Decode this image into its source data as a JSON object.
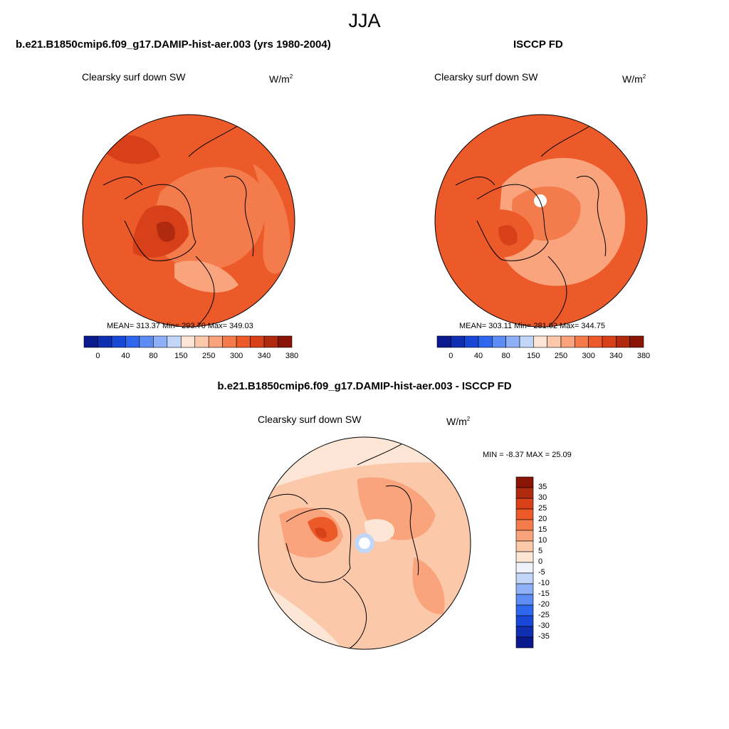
{
  "season": "JJA",
  "panels": [
    {
      "title": "b.e21.B1850cmip6.f09_g17.DAMIP-hist-aer.003 (yrs 1980-2004)",
      "variable": "Clearsky surf down SW",
      "units_base": "W/m",
      "units_exp": "2",
      "stats": "MEAN= 313.37  Min= 293.70  Max= 349.03"
    },
    {
      "title": "ISCCP FD",
      "variable": "Clearsky surf down SW",
      "units_base": "W/m",
      "units_exp": "2",
      "stats": "MEAN= 303.11  Min= 281.02  Max= 344.75"
    },
    {
      "title": "b.e21.B1850cmip6.f09_g17.DAMIP-hist-aer.003 - ISCCP FD",
      "variable": "Clearsky surf down SW",
      "units_base": "W/m",
      "units_exp": "2",
      "stats": "MIN =  -8.37 MAX =  25.09"
    }
  ],
  "colorbar_top": {
    "colors": [
      "#0a1a8c",
      "#0f2fb0",
      "#1948d8",
      "#2e66ee",
      "#5c8cf4",
      "#8fb0f6",
      "#c2d6f8",
      "#fde6d6",
      "#fbc8aa",
      "#f9a47c",
      "#f47c4c",
      "#ec5a2a",
      "#d8401a",
      "#b02a10",
      "#8a1406"
    ],
    "labels": [
      "0",
      "40",
      "80",
      "150",
      "250",
      "300",
      "340",
      "380"
    ]
  },
  "colorbar_diff": {
    "colors": [
      "#8a1406",
      "#b02a10",
      "#d8401a",
      "#ec5a2a",
      "#f47c4c",
      "#f9a47c",
      "#fbc8aa",
      "#fde6d6",
      "#eef3fb",
      "#c2d6f8",
      "#8fb0f6",
      "#5c8cf4",
      "#2e66ee",
      "#1948d8",
      "#0f2fb0",
      "#0a1a8c"
    ],
    "labels": [
      "35",
      "30",
      "25",
      "20",
      "15",
      "10",
      "5",
      "0",
      "-5",
      "-10",
      "-15",
      "-20",
      "-25",
      "-30",
      "-35"
    ]
  }
}
